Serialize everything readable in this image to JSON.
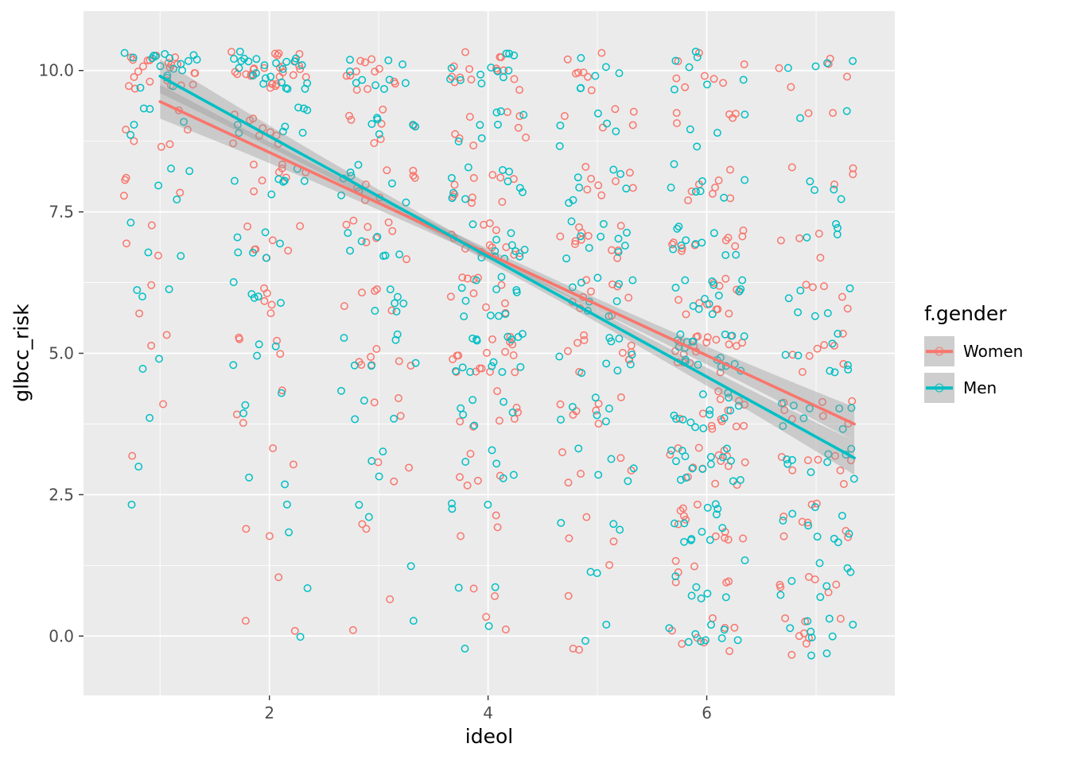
{
  "chart_data": {
    "type": "scatter",
    "title": "",
    "xlabel": "ideol",
    "ylabel": "glbcc_risk",
    "xlim": [
      0.3,
      7.72
    ],
    "ylim": [
      -1.05,
      11.05
    ],
    "xticks": [
      2,
      4,
      6
    ],
    "xtick_labels": [
      "2",
      "4",
      "6"
    ],
    "yticks": [
      0.0,
      2.5,
      5.0,
      7.5,
      10.0
    ],
    "ytick_labels": [
      "0.0",
      "2.5",
      "5.0",
      "7.5",
      "10.0"
    ],
    "minor_xticks": [
      1,
      3,
      5,
      7
    ],
    "minor_yticks": [
      1.25,
      3.75,
      6.25,
      8.75
    ],
    "grid": true,
    "panel_bg": "#EBEBEB",
    "grid_color": "#FFFFFF",
    "tick_color": "#333333",
    "tick_label_color": "#4D4D4D",
    "legend": {
      "title": "f.gender",
      "position": "right",
      "key_bg": "#CECECE"
    },
    "marker": "open-circle",
    "point_radius": 4.2,
    "point_stroke_width": 1.5,
    "line_width": 3.6,
    "ideol_values": [
      1,
      2,
      3,
      4,
      5,
      6,
      7
    ],
    "risk_values": [
      0,
      1,
      2,
      3,
      4,
      5,
      6,
      7,
      8,
      9,
      10
    ],
    "jitter": {
      "width": 0.35,
      "height": 0.35
    },
    "series": [
      {
        "name": "Women",
        "color": "#F8766D",
        "seed": 101,
        "counts_by_ideol_then_risk": [
          [
            0,
            0,
            0,
            1,
            1,
            2,
            2,
            3,
            4,
            6,
            22
          ],
          [
            2,
            1,
            2,
            2,
            3,
            4,
            5,
            7,
            8,
            9,
            28
          ],
          [
            1,
            1,
            2,
            3,
            3,
            7,
            5,
            8,
            8,
            7,
            12
          ],
          [
            2,
            2,
            3,
            5,
            7,
            16,
            10,
            12,
            10,
            8,
            14
          ],
          [
            2,
            2,
            3,
            5,
            7,
            10,
            9,
            11,
            8,
            5,
            7
          ],
          [
            8,
            6,
            11,
            14,
            13,
            18,
            12,
            10,
            8,
            5,
            8
          ],
          [
            8,
            6,
            8,
            8,
            7,
            8,
            5,
            4,
            4,
            2,
            5
          ]
        ]
      },
      {
        "name": "Men",
        "color": "#00BFC4",
        "seed": 202,
        "counts_by_ideol_then_risk": [
          [
            0,
            0,
            1,
            1,
            1,
            2,
            3,
            3,
            4,
            5,
            18
          ],
          [
            1,
            1,
            2,
            2,
            3,
            4,
            5,
            6,
            7,
            8,
            24
          ],
          [
            1,
            1,
            2,
            3,
            4,
            6,
            6,
            7,
            8,
            6,
            10
          ],
          [
            2,
            2,
            3,
            5,
            6,
            14,
            11,
            11,
            10,
            7,
            12
          ],
          [
            2,
            2,
            3,
            5,
            6,
            9,
            9,
            10,
            7,
            5,
            6
          ],
          [
            9,
            7,
            12,
            15,
            14,
            19,
            13,
            10,
            7,
            4,
            7
          ],
          [
            9,
            7,
            9,
            9,
            8,
            8,
            6,
            4,
            4,
            2,
            4
          ]
        ]
      }
    ],
    "smooth": [
      {
        "name": "Women",
        "color": "#F8766D",
        "x0": 1.0,
        "y0": 9.45,
        "x1": 7.35,
        "y1": 3.75
      },
      {
        "name": "Men",
        "color": "#00BFC4",
        "x0": 1.0,
        "y0": 9.9,
        "x1": 7.35,
        "y1": 3.15
      }
    ],
    "ribbon": {
      "color": "#999999",
      "opacity": 0.4,
      "half_width_end": 0.3,
      "half_width_mid": 0.09
    }
  }
}
